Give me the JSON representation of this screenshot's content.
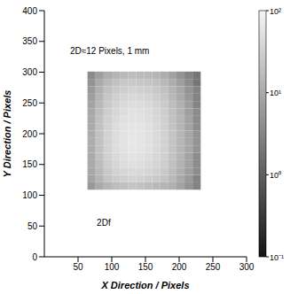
{
  "chart_data": {
    "type": "heatmap",
    "x_label": "X Direction / Pixels",
    "y_label": "Y Direction / Pixels",
    "x": [
      70,
      82,
      94,
      106,
      118,
      130,
      142,
      154,
      166,
      178,
      190,
      202,
      214,
      226
    ],
    "y": [
      115,
      127,
      139,
      151,
      163,
      175,
      187,
      199,
      211,
      223,
      235,
      247,
      259,
      271,
      283,
      295
    ],
    "values": [
      [
        6,
        10,
        14,
        18,
        20,
        22,
        20,
        18,
        16,
        14,
        12,
        8,
        5,
        3
      ],
      [
        8,
        14,
        22,
        28,
        32,
        35,
        34,
        30,
        26,
        22,
        16,
        10,
        6,
        3
      ],
      [
        9,
        16,
        26,
        34,
        40,
        44,
        42,
        38,
        32,
        26,
        18,
        12,
        7,
        4
      ],
      [
        10,
        18,
        30,
        40,
        48,
        52,
        50,
        44,
        38,
        30,
        20,
        13,
        8,
        4
      ],
      [
        10,
        20,
        32,
        44,
        52,
        58,
        56,
        48,
        40,
        32,
        22,
        14,
        8,
        4
      ],
      [
        11,
        20,
        34,
        46,
        56,
        62,
        60,
        52,
        42,
        34,
        22,
        14,
        9,
        5
      ],
      [
        11,
        21,
        35,
        48,
        58,
        65,
        62,
        54,
        44,
        34,
        23,
        15,
        9,
        5
      ],
      [
        11,
        21,
        35,
        48,
        58,
        64,
        62,
        54,
        44,
        34,
        23,
        15,
        9,
        5
      ],
      [
        10,
        20,
        34,
        46,
        56,
        62,
        60,
        52,
        42,
        33,
        22,
        14,
        8,
        4
      ],
      [
        10,
        20,
        32,
        44,
        52,
        58,
        56,
        50,
        40,
        32,
        21,
        14,
        8,
        4
      ],
      [
        9,
        18,
        30,
        40,
        48,
        54,
        52,
        46,
        38,
        30,
        20,
        13,
        7,
        4
      ],
      [
        8,
        16,
        27,
        36,
        44,
        48,
        46,
        42,
        34,
        27,
        18,
        12,
        7,
        3
      ],
      [
        7,
        14,
        24,
        32,
        38,
        42,
        40,
        36,
        30,
        24,
        16,
        10,
        6,
        3
      ],
      [
        6,
        12,
        20,
        26,
        30,
        34,
        32,
        30,
        25,
        20,
        14,
        9,
        5,
        3
      ],
      [
        5,
        10,
        16,
        20,
        24,
        26,
        25,
        23,
        20,
        16,
        11,
        7,
        4,
        2
      ],
      [
        4,
        7,
        11,
        14,
        16,
        18,
        17,
        16,
        14,
        11,
        8,
        5,
        3,
        2
      ]
    ],
    "xlim": [
      0,
      300
    ],
    "ylim": [
      0,
      400
    ],
    "xticks": [
      50,
      100,
      150,
      200,
      250,
      300
    ],
    "yticks": [
      0,
      50,
      100,
      150,
      200,
      250,
      300,
      350,
      400
    ],
    "colorbar": {
      "lim": [
        0.1,
        100
      ],
      "ticks": [
        {
          "value": 0.1,
          "label": "10⁻¹"
        },
        {
          "value": 1,
          "label": "10⁰"
        },
        {
          "value": 10,
          "label": "10¹"
        },
        {
          "value": 100,
          "label": "10²"
        }
      ]
    },
    "annotations": [
      {
        "text": "2D≈12 Pixels, 1 mm",
        "x": 97,
        "y": 335
      },
      {
        "text": "2Df",
        "x": 88,
        "y": 55
      }
    ]
  }
}
